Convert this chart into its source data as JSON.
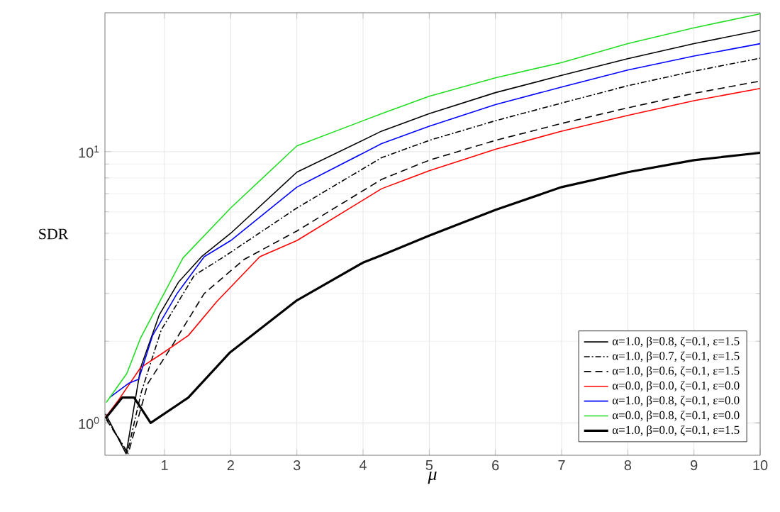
{
  "chart_data": {
    "type": "line",
    "xlabel": "μ",
    "ylabel": "SDR",
    "log": "y",
    "grid": true,
    "legend": "bottom right",
    "xlim": [
      0.1,
      10
    ],
    "ylim": [
      0.76,
      32.5
    ],
    "xticks": [
      1,
      2,
      3,
      4,
      5,
      6,
      7,
      8,
      9,
      10
    ],
    "yticks": [
      {
        "value": 1,
        "label": "10$^{0}$"
      },
      {
        "value": 10,
        "label": "10$^{1}$"
      }
    ],
    "series": [
      {
        "name": "α=1.0, β=0.8, ζ=0.1, ε=1.5",
        "color": "#000000",
        "line_style": "solid",
        "x": [
          0.11,
          0.42,
          0.64,
          0.92,
          1.21,
          1.56,
          2,
          3,
          4.28,
          5,
          6,
          7,
          8,
          9,
          10
        ],
        "values": [
          1.08,
          0.77,
          1.6,
          2.5,
          3.3,
          4.1,
          5.0,
          8.4,
          11.9,
          13.8,
          16.5,
          19.1,
          22,
          25,
          28
        ]
      },
      {
        "name": "α=1.0, β=0.7, ζ=0.1, ε=1.5",
        "color": "#000000",
        "line_style": "dashdot",
        "x": [
          0.11,
          0.44,
          0.65,
          0.95,
          1.45,
          1.9,
          3,
          4.28,
          5,
          6,
          7,
          8,
          9,
          10
        ],
        "values": [
          1.05,
          0.78,
          1.3,
          2.2,
          3.5,
          4.1,
          6.2,
          9.5,
          11,
          13,
          15.1,
          17.5,
          19.8,
          22.1
        ]
      },
      {
        "name": "α=1.0, β=0.6, ζ=0.1, ε=1.5",
        "color": "#000000",
        "line_style": "dashed",
        "x": [
          0.12,
          0.45,
          0.75,
          1.1,
          1.6,
          2.2,
          3,
          4.28,
          5,
          6,
          7,
          8,
          9,
          10
        ],
        "values": [
          1.03,
          0.77,
          1.4,
          1.9,
          3.0,
          4.0,
          5.1,
          7.9,
          9.3,
          11,
          12.7,
          14.5,
          16.4,
          18.2
        ]
      },
      {
        "name": "α=0.0, β=0.0, ζ=0.1, ε=0.0",
        "color": "#ff0000",
        "line_style": "solid",
        "x": [
          0.11,
          0.29,
          0.64,
          0.96,
          1.36,
          1.79,
          2.44,
          3,
          4.28,
          5,
          6,
          7,
          8,
          9,
          10
        ],
        "values": [
          1.05,
          1.2,
          1.6,
          1.8,
          2.1,
          2.8,
          4.1,
          4.7,
          7.3,
          8.5,
          10.2,
          11.9,
          13.6,
          15.4,
          17.1
        ]
      },
      {
        "name": "α=1.0, β=0.8, ζ=0.1, ε=0.0",
        "color": "#0000ff",
        "line_style": "solid",
        "x": [
          0.17,
          0.46,
          0.61,
          0.82,
          1.19,
          1.6,
          2,
          3,
          4.28,
          5,
          6,
          7,
          8,
          9,
          10
        ],
        "values": [
          1.24,
          1.4,
          1.45,
          2.1,
          3.0,
          4.1,
          4.7,
          7.4,
          10.7,
          12.4,
          14.9,
          17.3,
          20,
          22.5,
          25
        ]
      },
      {
        "name": "α=0.0, β=0.8, ζ=0.1, ε=0.0",
        "color": "#22dd22",
        "line_style": "solid",
        "x": [
          0.12,
          0.43,
          0.64,
          0.92,
          1.28,
          2,
          3,
          4.28,
          5,
          6,
          7,
          8,
          9,
          10
        ],
        "values": [
          1.19,
          1.52,
          2.06,
          2.78,
          4.06,
          6.2,
          10.5,
          13.8,
          16,
          18.7,
          21.3,
          25,
          28.6,
          32.2
        ]
      },
      {
        "name": "α=1.0, β=0.0, ζ=0.1, ε=1.5",
        "color": "#000000",
        "line_style": "solid",
        "x": [
          0.11,
          0.36,
          0.54,
          0.79,
          1.36,
          1.99,
          3,
          4,
          4.28,
          5,
          6,
          7,
          8,
          9,
          10
        ],
        "values": [
          1.04,
          1.24,
          1.24,
          1.0,
          1.24,
          1.82,
          2.83,
          3.9,
          4.15,
          4.9,
          6.1,
          7.4,
          8.4,
          9.3,
          9.9
        ]
      }
    ]
  }
}
